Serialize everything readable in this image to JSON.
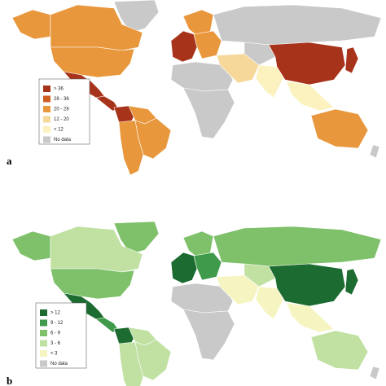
{
  "maps": [
    {
      "panel_label": "a",
      "legend": [
        {
          "label": "> 36",
          "color": "#a8331b"
        },
        {
          "label": "28 - 36",
          "color": "#cf5d22"
        },
        {
          "label": "20 - 28",
          "color": "#e8973c"
        },
        {
          "label": "12 - 20",
          "color": "#f5d89a"
        },
        {
          "label": "< 12",
          "color": "#fbf2bf"
        },
        {
          "label": "No data",
          "color": "#c9c9c9"
        }
      ]
    },
    {
      "panel_label": "b",
      "legend": [
        {
          "label": "> 12",
          "color": "#1c6b30"
        },
        {
          "label": "9 - 12",
          "color": "#3f9b4b"
        },
        {
          "label": "6 - 9",
          "color": "#7fc16b"
        },
        {
          "label": "3 - 6",
          "color": "#c0e1a2"
        },
        {
          "label": "< 3",
          "color": "#f6f5c1"
        },
        {
          "label": "No data",
          "color": "#c9c9c9"
        }
      ]
    }
  ]
}
